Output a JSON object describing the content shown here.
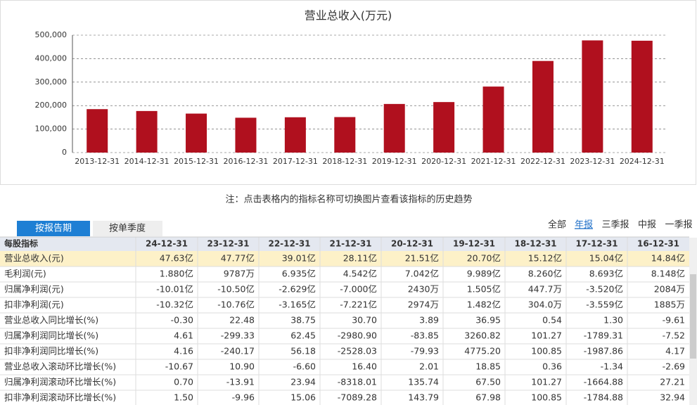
{
  "chart_data": {
    "type": "bar",
    "title": "营业总收入(万元)",
    "categories": [
      "2013-12-31",
      "2014-12-31",
      "2015-12-31",
      "2016-12-31",
      "2017-12-31",
      "2018-12-31",
      "2019-12-31",
      "2020-12-31",
      "2021-12-31",
      "2022-12-31",
      "2023-12-31",
      "2024-12-31"
    ],
    "values": [
      185000,
      177000,
      166000,
      148400,
      150400,
      151200,
      207000,
      215100,
      281100,
      390100,
      477700,
      476300
    ],
    "color": "#b0101e",
    "ylim": [
      0,
      500000
    ],
    "yticks": [
      0,
      {
        "value": 100000,
        "label": "100,000"
      },
      {
        "value": 200000,
        "label": "200,000"
      },
      {
        "value": 300000,
        "label": "300,000"
      },
      {
        "value": 400000,
        "label": "400,000"
      },
      {
        "value": 500000,
        "label": "500,000"
      }
    ],
    "grid": true
  },
  "note": "注：点击表格内的指标名称可切换图片查看该指标的历史趋势",
  "tabs": [
    "按报告期",
    "按单季度"
  ],
  "filters": [
    "全部",
    "年报",
    "三季报",
    "中报",
    "一季报"
  ],
  "table": {
    "header": [
      "每股指标",
      "24-12-31",
      "23-12-31",
      "22-12-31",
      "21-12-31",
      "20-12-31",
      "19-12-31",
      "18-12-31",
      "17-12-31",
      "16-12-31"
    ],
    "rows": [
      [
        "营业总收入(元)",
        "47.63亿",
        "47.77亿",
        "39.01亿",
        "28.11亿",
        "21.51亿",
        "20.70亿",
        "15.12亿",
        "15.04亿",
        "14.84亿"
      ],
      [
        "毛利润(元)",
        "1.880亿",
        "9787万",
        "6.935亿",
        "4.542亿",
        "7.042亿",
        "9.989亿",
        "8.260亿",
        "8.693亿",
        "8.148亿"
      ],
      [
        "归属净利润(元)",
        "-10.01亿",
        "-10.50亿",
        "-2.629亿",
        "-7.000亿",
        "2430万",
        "1.505亿",
        "447.7万",
        "-3.520亿",
        "2084万"
      ],
      [
        "扣非净利润(元)",
        "-10.32亿",
        "-10.76亿",
        "-3.165亿",
        "-7.221亿",
        "2974万",
        "1.482亿",
        "304.0万",
        "-3.559亿",
        "1885万"
      ],
      [
        "营业总收入同比增长(%)",
        "-0.30",
        "22.48",
        "38.75",
        "30.70",
        "3.89",
        "36.95",
        "0.54",
        "1.30",
        "-9.61"
      ],
      [
        "归属净利润同比增长(%)",
        "4.61",
        "-299.33",
        "62.45",
        "-2980.90",
        "-83.85",
        "3260.82",
        "101.27",
        "-1789.31",
        "-7.52"
      ],
      [
        "扣非净利润同比增长(%)",
        "4.16",
        "-240.17",
        "56.18",
        "-2528.03",
        "-79.93",
        "4775.20",
        "100.85",
        "-1987.86",
        "4.17"
      ],
      [
        "营业总收入滚动环比增长(%)",
        "-10.67",
        "10.90",
        "-6.60",
        "16.40",
        "2.01",
        "18.85",
        "0.36",
        "-1.34",
        "-2.69"
      ],
      [
        "归属净利润滚动环比增长(%)",
        "0.70",
        "-13.91",
        "23.94",
        "-8318.01",
        "135.74",
        "67.50",
        "101.27",
        "-1664.88",
        "27.21"
      ],
      [
        "扣非净利润滚动环比增长(%)",
        "1.50",
        "-9.96",
        "15.06",
        "-7089.28",
        "143.79",
        "67.98",
        "100.85",
        "-1784.88",
        "32.94"
      ]
    ]
  }
}
